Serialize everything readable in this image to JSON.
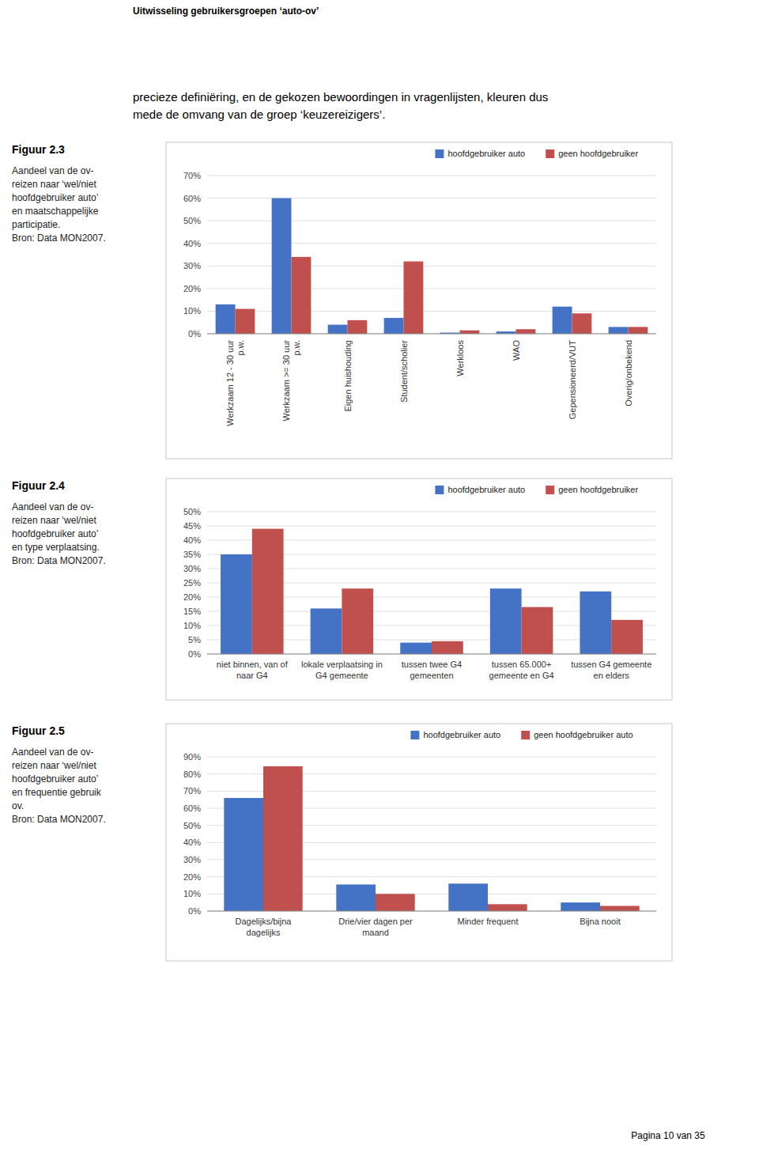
{
  "page": {
    "title": "Uitwisseling gebruikersgroepen ‘auto-ov’",
    "text": "precieze definiëring, en de gekozen bewoordingen in vragenlijsten, kleuren dus\nmede de omvang van de groep ‘keuzereizigers’.",
    "footer": "Pagina 10 van 35"
  },
  "chart_data": [
    {
      "type": "bar",
      "title": "Figuur 2.3",
      "caption": "Aandeel van de ov-\nreizen naar ‘wel/niet\nhoofdgebruiker auto’\nen maatschappelijke\nparticipatie.\nBron: Data MON2007.",
      "categories": [
        "Werkzaam 12 - 30 uur\np.w.",
        "Werkzaam >= 30 uur\np.w.",
        "Eigen huishouding",
        "Student/scholier",
        "Werkloos",
        "WAO",
        "Gepensioneerd/VUT",
        "Overig/onbekend"
      ],
      "series": [
        {
          "name": "hoofdgebruiker auto",
          "color": "#4472C4",
          "values": [
            0.13,
            0.6,
            0.04,
            0.07,
            0.005,
            0.01,
            0.12,
            0.03
          ]
        },
        {
          "name": "geen hoofdgebruiker",
          "color": "#C0504D",
          "values": [
            0.11,
            0.34,
            0.06,
            0.32,
            0.015,
            0.02,
            0.09,
            0.03
          ]
        }
      ],
      "ylim": [
        0,
        0.7
      ],
      "yticks": [
        {
          "value": 0.0,
          "label": "0%"
        },
        {
          "value": 0.1,
          "label": "10%"
        },
        {
          "value": 0.2,
          "label": "20%"
        },
        {
          "value": 0.3,
          "label": "30%"
        },
        {
          "value": 0.4,
          "label": "40%"
        },
        {
          "value": 0.5,
          "label": "50%"
        },
        {
          "value": 0.6,
          "label": "60%"
        },
        {
          "value": 0.7,
          "label": "70%"
        }
      ],
      "grid": true,
      "legend": "upper right"
    },
    {
      "type": "bar",
      "title": "Figuur 2.4",
      "caption": "Aandeel van de ov-\nreizen naar ‘wel/niet\nhoofdgebruiker auto’\nen type verplaatsing.\nBron: Data MON2007.",
      "categories": [
        "niet binnen, van of\nnaar G4",
        "lokale verplaatsing in\nG4 gemeente",
        "tussen twee G4\ngemeenten",
        "tussen 65.000+\ngemeente en G4",
        "tussen G4 gemeente\nen elders"
      ],
      "series": [
        {
          "name": "hoofdgebruiker auto",
          "color": "#4472C4",
          "values": [
            0.35,
            0.16,
            0.04,
            0.23,
            0.22
          ]
        },
        {
          "name": "geen hoofdgebruiker",
          "color": "#C0504D",
          "values": [
            0.44,
            0.23,
            0.045,
            0.165,
            0.12
          ]
        }
      ],
      "ylim": [
        0,
        0.5
      ],
      "yticks": [
        {
          "value": 0.0,
          "label": "0%"
        },
        {
          "value": 0.05,
          "label": "5%"
        },
        {
          "value": 0.1,
          "label": "10%"
        },
        {
          "value": 0.15,
          "label": "15%"
        },
        {
          "value": 0.2,
          "label": "20%"
        },
        {
          "value": 0.25,
          "label": "25%"
        },
        {
          "value": 0.3,
          "label": "30%"
        },
        {
          "value": 0.35,
          "label": "35%"
        },
        {
          "value": 0.4,
          "label": "40%"
        },
        {
          "value": 0.45,
          "label": "45%"
        },
        {
          "value": 0.5,
          "label": "50%"
        }
      ],
      "grid": true,
      "legend": "upper right"
    },
    {
      "type": "bar",
      "title": "Figuur 2.5",
      "caption": "Aandeel van de ov-\nreizen naar ‘wel/niet\nhoofdgebruiker auto’\nen frequentie gebruik\nov.\nBron:  Data MON2007.",
      "categories": [
        "Dagelijks/bijna\ndagelijks",
        "Drie/vier dagen per\nmaand",
        "Minder frequent",
        "Bijna nooit"
      ],
      "series": [
        {
          "name": "hoofdgebruiker auto",
          "color": "#4472C4",
          "values": [
            0.66,
            0.155,
            0.16,
            0.05
          ]
        },
        {
          "name": "geen hoofdgebruiker auto",
          "color": "#C0504D",
          "values": [
            0.845,
            0.1,
            0.04,
            0.03
          ]
        }
      ],
      "ylim": [
        0,
        0.9
      ],
      "yticks": [
        {
          "value": 0.0,
          "label": "0%"
        },
        {
          "value": 0.1,
          "label": "10%"
        },
        {
          "value": 0.2,
          "label": "20%"
        },
        {
          "value": 0.3,
          "label": "30%"
        },
        {
          "value": 0.4,
          "label": "40%"
        },
        {
          "value": 0.5,
          "label": "50%"
        },
        {
          "value": 0.6,
          "label": "60%"
        },
        {
          "value": 0.7,
          "label": "70%"
        },
        {
          "value": 0.8,
          "label": "80%"
        },
        {
          "value": 0.9,
          "label": "90%"
        }
      ],
      "grid": true,
      "legend": "upper right"
    }
  ]
}
